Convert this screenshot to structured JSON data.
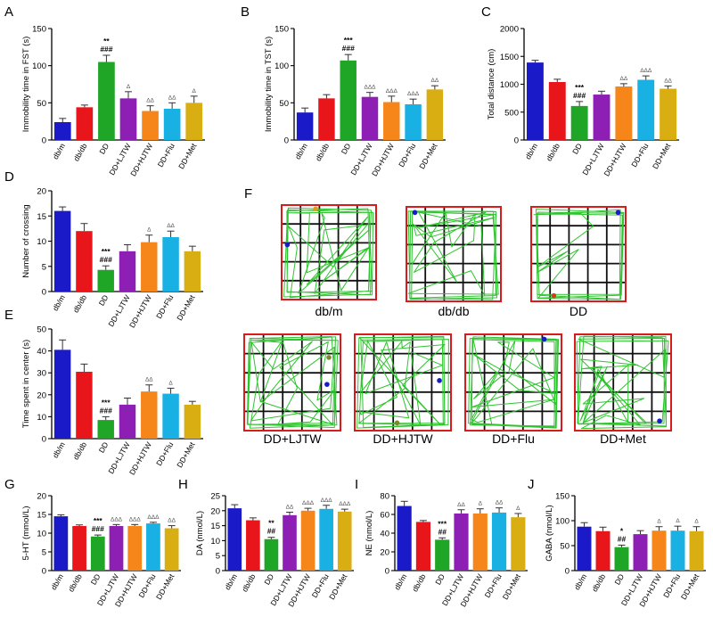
{
  "group_labels": [
    "db/m",
    "db/db",
    "DD",
    "DD+LJTW",
    "DD+HJTW",
    "DD+Flu",
    "DD+Met"
  ],
  "group_colors": [
    "#1a1ac8",
    "#e8161b",
    "#1fa626",
    "#8e1fb4",
    "#f7861a",
    "#19b1e3",
    "#d9ae12"
  ],
  "chart_data": [
    {
      "panel": "A",
      "type": "bar",
      "ylabel": "Immobility time in FST (s)",
      "ylim": [
        0,
        150
      ],
      "yticks": [
        0,
        50,
        100,
        150
      ],
      "categories": [
        "db/m",
        "db/db",
        "DD",
        "DD+LJTW",
        "DD+HJTW",
        "DD+Flu",
        "DD+Met"
      ],
      "values": [
        24,
        44,
        105,
        56,
        39,
        42,
        50
      ],
      "errors": [
        5,
        3,
        9,
        9,
        7,
        8,
        9
      ],
      "annotations": [
        [],
        [],
        [
          "**",
          "###"
        ],
        [
          "Δ"
        ],
        [
          "ΔΔ"
        ],
        [
          "ΔΔ"
        ],
        [
          "Δ"
        ]
      ]
    },
    {
      "panel": "B",
      "type": "bar",
      "ylabel": "Immobility time in TST (s)",
      "ylim": [
        0,
        150
      ],
      "yticks": [
        0,
        50,
        100,
        150
      ],
      "categories": [
        "db/m",
        "db/db",
        "DD",
        "DD+LJTW",
        "DD+HJTW",
        "DD+Flu",
        "DD+Met"
      ],
      "values": [
        37,
        56,
        107,
        58,
        51,
        48,
        68
      ],
      "errors": [
        6,
        5,
        8,
        6,
        8,
        7,
        5
      ],
      "annotations": [
        [],
        [],
        [
          "***",
          "###"
        ],
        [
          "ΔΔΔ"
        ],
        [
          "ΔΔΔ"
        ],
        [
          "ΔΔΔ"
        ],
        [
          "ΔΔ"
        ]
      ]
    },
    {
      "panel": "C",
      "type": "bar",
      "ylabel": "Total distance (cm)",
      "ylim": [
        0,
        2000
      ],
      "yticks": [
        0,
        500,
        1000,
        1500,
        2000
      ],
      "categories": [
        "db/m",
        "db/db",
        "DD",
        "DD+LJTW",
        "DD+HJTW",
        "DD+Flu",
        "DD+Met"
      ],
      "values": [
        1390,
        1040,
        610,
        815,
        960,
        1080,
        920
      ],
      "errors": [
        40,
        50,
        80,
        60,
        50,
        70,
        50
      ],
      "annotations": [
        [],
        [],
        [
          "***",
          "###"
        ],
        [],
        [
          "ΔΔ"
        ],
        [
          "ΔΔΔ"
        ],
        [
          "ΔΔ"
        ]
      ]
    },
    {
      "panel": "D",
      "type": "bar",
      "ylabel": "Number of crossing",
      "ylim": [
        0,
        20
      ],
      "yticks": [
        0,
        5,
        10,
        15,
        20
      ],
      "categories": [
        "db/m",
        "db/db",
        "DD",
        "DD+LJTW",
        "DD+HJTW",
        "DD+Flu",
        "DD+Met"
      ],
      "values": [
        16,
        12,
        4.3,
        8,
        9.8,
        10.8,
        8
      ],
      "errors": [
        0.8,
        1.5,
        0.8,
        1.3,
        1.4,
        1.2,
        1.0
      ],
      "annotations": [
        [],
        [],
        [
          "***",
          "###"
        ],
        [],
        [
          "Δ"
        ],
        [
          "ΔΔ"
        ],
        []
      ]
    },
    {
      "panel": "E",
      "type": "bar",
      "ylabel": "Time spent in center  (s)",
      "ylim": [
        0,
        50
      ],
      "yticks": [
        0,
        10,
        20,
        30,
        40,
        50
      ],
      "categories": [
        "db/m",
        "db/db",
        "DD",
        "DD+LJTW",
        "DD+HJTW",
        "DD+Flu",
        "DD+Met"
      ],
      "values": [
        40.5,
        30.5,
        8.5,
        15.5,
        21.5,
        20.5,
        15.5
      ],
      "errors": [
        4.5,
        3.5,
        1.5,
        3.0,
        3.0,
        2.5,
        1.5
      ],
      "annotations": [
        [],
        [],
        [
          "***",
          "###"
        ],
        [],
        [
          "ΔΔ"
        ],
        [
          "Δ"
        ],
        []
      ]
    },
    {
      "panel": "G",
      "type": "bar",
      "ylabel": "5-HT  (mmol/L)",
      "ylim": [
        0,
        20
      ],
      "yticks": [
        0,
        5,
        10,
        15,
        20
      ],
      "categories": [
        "db/m",
        "db/db",
        "DD",
        "DD+LJTW",
        "DD+HJTW",
        "DD+Flu",
        "DD+Met"
      ],
      "values": [
        14.5,
        11.9,
        9.1,
        11.9,
        11.9,
        12.6,
        11.3
      ],
      "errors": [
        0.4,
        0.3,
        0.4,
        0.4,
        0.4,
        0.3,
        0.7
      ],
      "annotations": [
        [],
        [],
        [
          "***",
          "###"
        ],
        [
          "ΔΔΔ"
        ],
        [
          "ΔΔΔ"
        ],
        [
          "ΔΔΔ"
        ],
        [
          "ΔΔ"
        ]
      ]
    },
    {
      "panel": "H",
      "type": "bar",
      "ylabel": "DA (nmol/L)",
      "ylim": [
        0,
        25
      ],
      "yticks": [
        0,
        5,
        10,
        15,
        20,
        25
      ],
      "categories": [
        "db/m",
        "db/db",
        "DD",
        "DD+LJTW",
        "DD+HJTW",
        "DD+Flu",
        "DD+Met"
      ],
      "values": [
        20.8,
        16.8,
        10.5,
        18.5,
        20.0,
        20.6,
        19.7
      ],
      "errors": [
        1.2,
        0.8,
        0.6,
        1.0,
        0.8,
        1.2,
        0.8
      ],
      "annotations": [
        [],
        [],
        [
          "**",
          "##"
        ],
        [
          "ΔΔ"
        ],
        [
          "ΔΔΔ"
        ],
        [
          "ΔΔΔ"
        ],
        [
          "ΔΔΔ"
        ]
      ]
    },
    {
      "panel": "I",
      "type": "bar",
      "ylabel": "NE (nmol/L)",
      "ylim": [
        0,
        80
      ],
      "yticks": [
        0,
        20,
        40,
        60,
        80
      ],
      "categories": [
        "db/m",
        "db/db",
        "DD",
        "DD+LJTW",
        "DD+HJTW",
        "DD+Flu",
        "DD+Met"
      ],
      "values": [
        69,
        52,
        33,
        61,
        61,
        62,
        57
      ],
      "errors": [
        5,
        1.5,
        2,
        4,
        5,
        5,
        4
      ],
      "annotations": [
        [],
        [],
        [
          "***",
          "##"
        ],
        [
          "ΔΔ"
        ],
        [
          "Δ"
        ],
        [
          "ΔΔ"
        ],
        [
          "Δ"
        ]
      ]
    },
    {
      "panel": "J",
      "type": "bar",
      "ylabel": "GABA (nmol/L)",
      "ylim": [
        0,
        150
      ],
      "yticks": [
        0,
        50,
        100,
        150
      ],
      "categories": [
        "db/m",
        "db/db",
        "DD",
        "DD+LJTW",
        "DD+HJTW",
        "DD+Flu",
        "DD+Met"
      ],
      "values": [
        88,
        79,
        47,
        73,
        80,
        80,
        79
      ],
      "errors": [
        8,
        8,
        4,
        7,
        8,
        9,
        9
      ],
      "annotations": [
        [],
        [],
        [
          "*",
          "##"
        ],
        [],
        [
          "Δ"
        ],
        [
          "Δ"
        ],
        [
          "Δ"
        ]
      ]
    }
  ],
  "tracks": {
    "panel": "F",
    "labels": [
      "db/m",
      "db/db",
      "DD",
      "DD+LJTW",
      "DD+HJTW",
      "DD+Flu",
      "DD+Met"
    ]
  }
}
